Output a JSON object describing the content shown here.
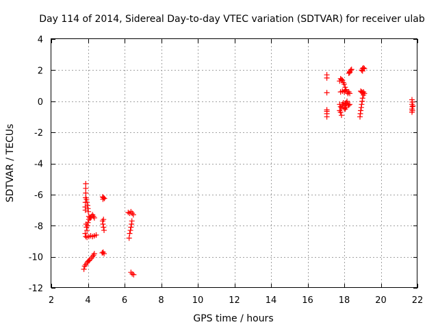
{
  "chart_data": {
    "type": "scatter",
    "title": "Day 114 of 2014, Sidereal Day-to-day VTEC variation (SDTVAR) for receiver ulab",
    "xlabel": "GPS time / hours",
    "ylabel": "SDTVAR / TECUs",
    "xlim": [
      2,
      22
    ],
    "ylim": [
      -12,
      4
    ],
    "xticks": [
      2,
      4,
      6,
      8,
      10,
      12,
      14,
      16,
      18,
      20,
      22
    ],
    "yticks": [
      4,
      2,
      0,
      -2,
      -4,
      -6,
      -8,
      -10,
      -12
    ],
    "xtick_labels": [
      "2",
      "4",
      "6",
      "8",
      "10",
      "12",
      "14",
      "16",
      "18",
      "20",
      "22"
    ],
    "ytick_labels": [
      "4",
      "2",
      "0",
      "-2",
      "-4",
      "-6",
      "-8",
      "-10",
      "-12"
    ],
    "grid": true,
    "marker": "+",
    "colors": {
      "series": "#ff0000",
      "grid": "#a0a0a0",
      "frame": "#000000"
    },
    "series": [
      {
        "name": "SDTVAR",
        "points": [
          [
            3.88,
            -5.3
          ],
          [
            3.88,
            -5.6
          ],
          [
            3.88,
            -5.9
          ],
          [
            3.87,
            -6.2
          ],
          [
            3.86,
            -6.5
          ],
          [
            3.85,
            -6.8
          ],
          [
            3.86,
            -7.0
          ],
          [
            3.92,
            -6.3
          ],
          [
            3.95,
            -6.5
          ],
          [
            3.98,
            -6.7
          ],
          [
            4.0,
            -6.9
          ],
          [
            4.02,
            -7.1
          ],
          [
            4.05,
            -7.4
          ],
          [
            4.1,
            -7.5
          ],
          [
            4.15,
            -7.5
          ],
          [
            4.2,
            -7.4
          ],
          [
            4.25,
            -7.3
          ],
          [
            4.3,
            -7.4
          ],
          [
            4.35,
            -7.5
          ],
          [
            3.9,
            -7.9
          ],
          [
            3.92,
            -8.1
          ],
          [
            3.95,
            -8.3
          ],
          [
            3.98,
            -8.0
          ],
          [
            4.0,
            -7.8
          ],
          [
            4.05,
            -7.6
          ],
          [
            4.1,
            -7.5
          ],
          [
            3.85,
            -8.5
          ],
          [
            3.88,
            -8.7
          ],
          [
            3.95,
            -8.75
          ],
          [
            4.05,
            -8.7
          ],
          [
            4.15,
            -8.65
          ],
          [
            4.25,
            -8.7
          ],
          [
            4.35,
            -8.65
          ],
          [
            4.45,
            -8.6
          ],
          [
            3.78,
            -10.8
          ],
          [
            3.82,
            -10.6
          ],
          [
            3.88,
            -10.5
          ],
          [
            3.95,
            -10.4
          ],
          [
            4.0,
            -10.3
          ],
          [
            4.05,
            -10.25
          ],
          [
            4.1,
            -10.2
          ],
          [
            4.18,
            -10.1
          ],
          [
            4.25,
            -10.0
          ],
          [
            4.3,
            -9.9
          ],
          [
            4.35,
            -9.8
          ],
          [
            4.8,
            -6.15
          ],
          [
            4.85,
            -6.2
          ],
          [
            4.9,
            -6.25
          ],
          [
            4.82,
            -6.3
          ],
          [
            4.8,
            -7.7
          ],
          [
            4.82,
            -7.9
          ],
          [
            4.85,
            -8.1
          ],
          [
            4.88,
            -8.3
          ],
          [
            4.85,
            -7.6
          ],
          [
            4.78,
            -9.75
          ],
          [
            4.83,
            -9.7
          ],
          [
            4.88,
            -9.8
          ],
          [
            6.2,
            -7.15
          ],
          [
            6.28,
            -7.2
          ],
          [
            6.35,
            -7.1
          ],
          [
            6.42,
            -7.2
          ],
          [
            6.48,
            -7.3
          ],
          [
            6.4,
            -7.7
          ],
          [
            6.38,
            -7.9
          ],
          [
            6.35,
            -8.1
          ],
          [
            6.32,
            -8.3
          ],
          [
            6.28,
            -8.5
          ],
          [
            6.25,
            -8.8
          ],
          [
            6.35,
            -11.0
          ],
          [
            6.42,
            -11.1
          ],
          [
            6.5,
            -11.15
          ],
          [
            17.05,
            1.7
          ],
          [
            17.05,
            1.5
          ],
          [
            17.05,
            0.55
          ],
          [
            17.05,
            -0.55
          ],
          [
            17.05,
            -0.65
          ],
          [
            17.05,
            -0.8
          ],
          [
            17.05,
            -1.0
          ],
          [
            17.75,
            1.3
          ],
          [
            17.8,
            1.45
          ],
          [
            17.85,
            1.4
          ],
          [
            17.9,
            1.35
          ],
          [
            17.95,
            1.2
          ],
          [
            18.0,
            1.1
          ],
          [
            18.05,
            0.9
          ],
          [
            18.1,
            0.75
          ],
          [
            18.15,
            0.6
          ],
          [
            18.2,
            0.5
          ],
          [
            18.25,
            0.6
          ],
          [
            18.3,
            0.5
          ],
          [
            17.8,
            0.6
          ],
          [
            17.9,
            0.65
          ],
          [
            18.0,
            0.6
          ],
          [
            18.05,
            0.7
          ],
          [
            17.75,
            -0.2
          ],
          [
            17.8,
            -0.35
          ],
          [
            17.85,
            -0.4
          ],
          [
            17.9,
            -0.2
          ],
          [
            17.95,
            -0.1
          ],
          [
            18.0,
            -0.3
          ],
          [
            18.05,
            -0.15
          ],
          [
            18.1,
            -0.1
          ],
          [
            18.15,
            0.0
          ],
          [
            18.2,
            -0.2
          ],
          [
            18.25,
            -0.25
          ],
          [
            18.3,
            -0.2
          ],
          [
            17.8,
            -0.7
          ],
          [
            17.85,
            -0.9
          ],
          [
            17.75,
            -0.6
          ],
          [
            18.0,
            -0.45
          ],
          [
            18.05,
            -0.5
          ],
          [
            18.1,
            -0.4
          ],
          [
            18.25,
            1.8
          ],
          [
            18.3,
            1.9
          ],
          [
            18.35,
            2.0
          ],
          [
            18.4,
            2.05
          ],
          [
            18.3,
            1.85
          ],
          [
            18.95,
            2.0
          ],
          [
            19.0,
            2.1
          ],
          [
            19.05,
            2.15
          ],
          [
            19.1,
            2.1
          ],
          [
            19.0,
            1.95
          ],
          [
            18.9,
            0.65
          ],
          [
            18.95,
            0.6
          ],
          [
            19.0,
            0.55
          ],
          [
            19.05,
            0.6
          ],
          [
            19.1,
            0.5
          ],
          [
            19.05,
            0.4
          ],
          [
            19.0,
            0.2
          ],
          [
            18.98,
            0.0
          ],
          [
            18.95,
            -0.2
          ],
          [
            18.93,
            -0.4
          ],
          [
            18.9,
            -0.6
          ],
          [
            18.88,
            -0.8
          ],
          [
            18.86,
            -1.0
          ],
          [
            21.7,
            0.1
          ],
          [
            21.72,
            -0.05
          ],
          [
            21.7,
            -0.2
          ],
          [
            21.72,
            -0.35
          ],
          [
            21.7,
            -0.5
          ],
          [
            21.72,
            -0.6
          ],
          [
            21.7,
            -0.7
          ],
          [
            21.75,
            -0.3
          ]
        ]
      }
    ]
  }
}
